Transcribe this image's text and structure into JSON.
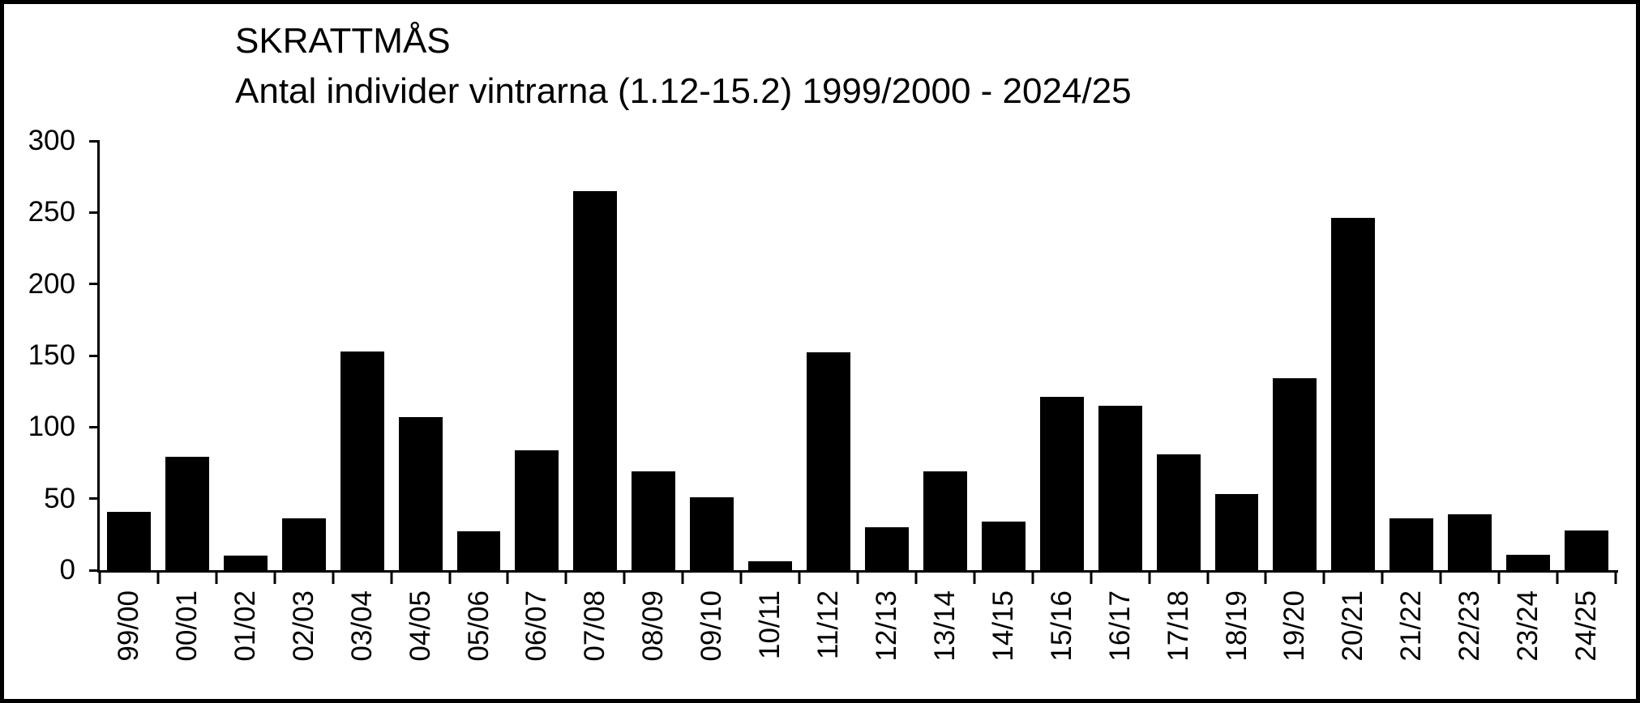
{
  "chart_data": {
    "type": "bar",
    "title": "SKRATTMÅS",
    "subtitle": "Antal individer vintrarna (1.12-15.2) 1999/2000 - 2024/25",
    "categories": [
      "99/00",
      "00/01",
      "01/02",
      "02/03",
      "03/04",
      "04/05",
      "05/06",
      "06/07",
      "07/08",
      "08/09",
      "09/10",
      "10/11",
      "11/12",
      "12/13",
      "13/14",
      "14/15",
      "15/16",
      "16/17",
      "17/18",
      "18/19",
      "19/20",
      "20/21",
      "21/22",
      "22/23",
      "23/24",
      "24/25"
    ],
    "values": [
      41,
      79,
      10,
      36,
      153,
      107,
      27,
      84,
      265,
      69,
      51,
      6,
      152,
      30,
      69,
      34,
      121,
      115,
      81,
      53,
      134,
      246,
      36,
      39,
      11,
      28
    ],
    "xlabel": "",
    "ylabel": "",
    "ylim": [
      0,
      300
    ],
    "yticks": [
      0,
      50,
      100,
      150,
      200,
      250,
      300
    ],
    "grid": false,
    "legend_position": "none",
    "bar_color": "#000000",
    "background_color": "#ffffff",
    "frame_color": "#000000",
    "x_label_rotation_deg": -90
  }
}
